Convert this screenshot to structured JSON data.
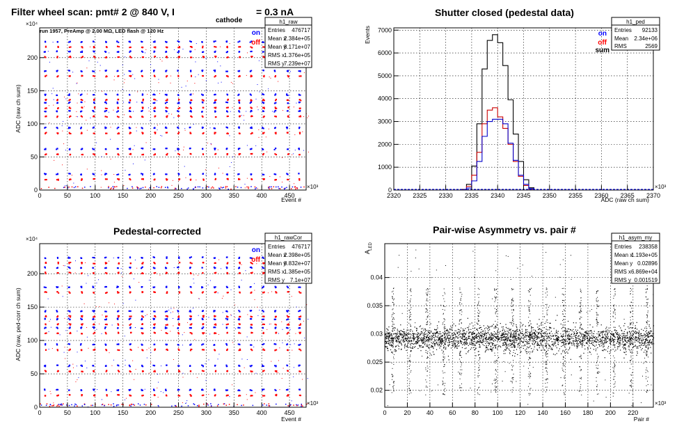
{
  "chart_data": [
    {
      "id": "raw",
      "type": "scatter",
      "title_main": "Filter wheel scan: pmt#   2 @   840 V, I",
      "title_sub": "cathode",
      "title_tail": "= 0.3 nA",
      "annotation": "run 1957, PreAmp @ 2.00 MΩ, LED flash @  120 Hz",
      "xlabel": "Event #",
      "ylabel": "ADC (raw ch sum)",
      "x_exponent": "×10³",
      "y_exponent": "×10⁴",
      "xlim": [
        0,
        480
      ],
      "ylim": [
        0,
        245
      ],
      "xticks": [
        0,
        50,
        100,
        150,
        200,
        250,
        300,
        350,
        400,
        450
      ],
      "yticks": [
        0,
        50,
        100,
        150,
        200
      ],
      "legend": [
        {
          "name": "on",
          "color": "#0000ff"
        },
        {
          "name": "off",
          "color": "#ff0000"
        }
      ],
      "band_levels": [
        20,
        58,
        90,
        115,
        128,
        140,
        176,
        205,
        220
      ],
      "stats": {
        "name": "h1_raw",
        "rows": [
          [
            "Entries",
            "476717"
          ],
          [
            "Mean x",
            "2.384e+05"
          ],
          [
            "Mean y",
            "8.171e+07"
          ],
          [
            "RMS x",
            "1.376e+05"
          ],
          [
            "RMS y",
            "7.239e+07"
          ]
        ]
      }
    },
    {
      "id": "ped",
      "type": "line",
      "title": "Shutter closed (pedestal data)",
      "xlabel": "ADC (raw ch sum)",
      "ylabel": "Events",
      "x_exponent": "×10³",
      "xlim": [
        2320,
        2370
      ],
      "ylim": [
        0,
        7100
      ],
      "xticks": [
        2320,
        2325,
        2330,
        2335,
        2340,
        2345,
        2350,
        2355,
        2360,
        2365,
        2370
      ],
      "yticks": [
        0,
        1000,
        2000,
        3000,
        4000,
        5000,
        6000,
        7000
      ],
      "legend": [
        {
          "name": "on",
          "color": "#0000ff"
        },
        {
          "name": "off",
          "color": "#ff0000"
        },
        {
          "name": "sum",
          "color": "#000000"
        }
      ],
      "x": [
        2333.5,
        2334.5,
        2335.5,
        2336.5,
        2337.5,
        2338.5,
        2339.5,
        2340.5,
        2341.5,
        2342.5,
        2343.5,
        2344.5,
        2345.5,
        2346.5
      ],
      "series": [
        {
          "name": "sum",
          "color": "#000000",
          "values": [
            30,
            250,
            1050,
            2900,
            5300,
            6550,
            6800,
            6450,
            5450,
            3950,
            2450,
            1250,
            450,
            100
          ]
        },
        {
          "name": "off",
          "color": "#cc0000",
          "values": [
            20,
            160,
            650,
            1650,
            2900,
            3500,
            3600,
            3200,
            2700,
            2000,
            1250,
            600,
            200,
            40
          ]
        },
        {
          "name": "on",
          "color": "#0000cc",
          "values": [
            10,
            90,
            400,
            1250,
            2350,
            3000,
            3100,
            3100,
            2900,
            2050,
            1300,
            650,
            250,
            60
          ]
        }
      ],
      "stats": {
        "name": "h1_ped",
        "rows": [
          [
            "Entries",
            "92133"
          ],
          [
            "Mean",
            "2.34e+06"
          ],
          [
            "RMS",
            "2569"
          ]
        ]
      }
    },
    {
      "id": "cor",
      "type": "scatter",
      "title": "Pedestal-corrected",
      "xlabel": "Event #",
      "ylabel": "ADC (raw, ped-corr ch sum)",
      "x_exponent": "×10³",
      "y_exponent": "×10⁴",
      "xlim": [
        0,
        480
      ],
      "ylim": [
        0,
        245
      ],
      "xticks": [
        0,
        50,
        100,
        150,
        200,
        250,
        300,
        350,
        400,
        450
      ],
      "yticks": [
        0,
        50,
        100,
        150,
        200
      ],
      "legend": [
        {
          "name": "on",
          "color": "#0000ff"
        },
        {
          "name": "off",
          "color": "#ff0000"
        }
      ],
      "band_levels": [
        22,
        58,
        90,
        115,
        128,
        140,
        176,
        205,
        220
      ],
      "stats": {
        "name": "h1_rawCor",
        "rows": [
          [
            "Entries",
            "476717"
          ],
          [
            "Mean x",
            "2.398e+05"
          ],
          [
            "Mean y",
            "8.832e+07"
          ],
          [
            "RMS x",
            "1.385e+05"
          ],
          [
            "RMS y",
            "7.1e+07"
          ]
        ]
      }
    },
    {
      "id": "asym",
      "type": "scatter",
      "title": "Pair-wise Asymmetry vs. pair #",
      "xlabel": "Pair #",
      "ylabel": "A",
      "ylabel_sub": "LED",
      "x_exponent": "×10³",
      "xlim": [
        0,
        238
      ],
      "ylim": [
        0.017,
        0.046
      ],
      "xticks": [
        0,
        20,
        40,
        60,
        80,
        100,
        120,
        140,
        160,
        180,
        200,
        220
      ],
      "yticks": [
        0.02,
        0.025,
        0.03,
        0.035,
        0.04
      ],
      "center": 0.0292,
      "spike_positions": [
        7,
        22,
        37,
        52,
        67,
        83,
        98,
        113,
        128,
        143,
        158,
        173,
        188,
        203,
        218,
        232
      ],
      "stats": {
        "name": "h1_asym_my",
        "rows": [
          [
            "Entries",
            "238358"
          ],
          [
            "Mean x",
            "1.193e+05"
          ],
          [
            "Mean y",
            "0.02896"
          ],
          [
            "RMS x",
            "6.869e+04"
          ],
          [
            "RMS y",
            "0.001519"
          ]
        ]
      }
    }
  ]
}
